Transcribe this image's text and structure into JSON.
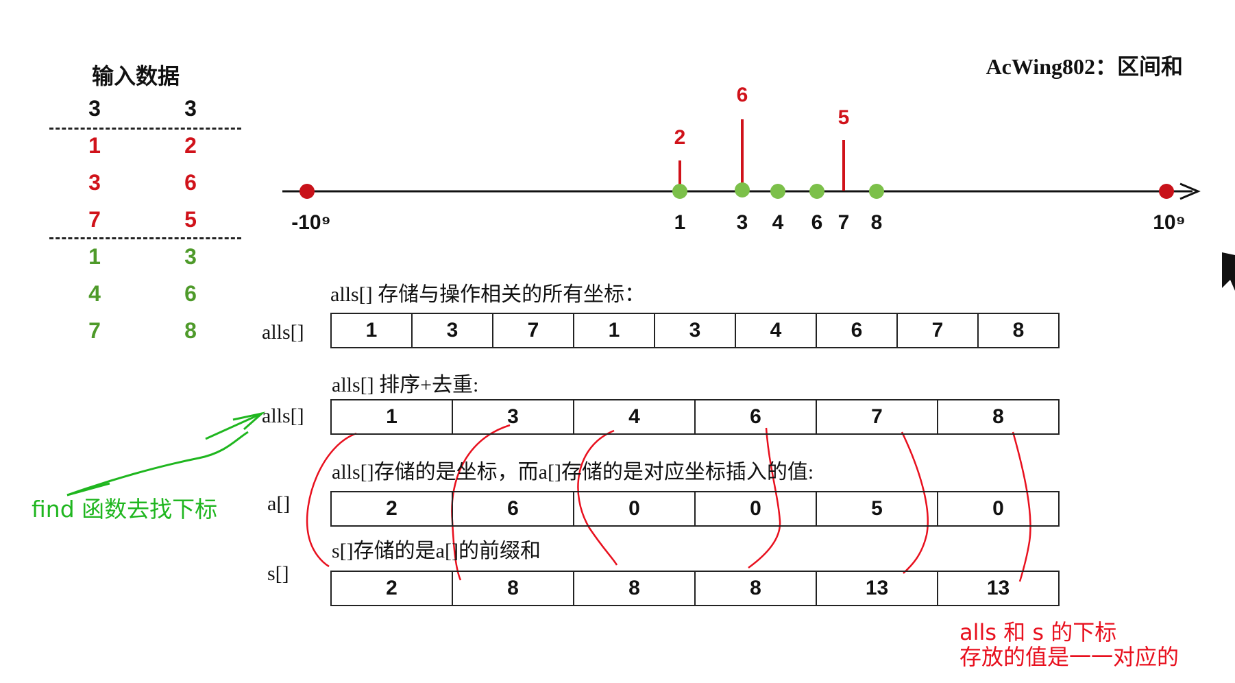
{
  "input": {
    "title": "输入数据",
    "header": [
      "3",
      "3"
    ],
    "add_rows": [
      [
        "1",
        "2"
      ],
      [
        "3",
        "6"
      ],
      [
        "7",
        "5"
      ]
    ],
    "query_rows": [
      [
        "1",
        "3"
      ],
      [
        "4",
        "6"
      ],
      [
        "7",
        "8"
      ]
    ]
  },
  "page_title": "AcWing802：区间和",
  "number_line": {
    "left_label": "-10⁹",
    "right_label": "10⁹",
    "ticks": [
      "1",
      "3",
      "4",
      "6",
      "7",
      "8"
    ],
    "bars": [
      {
        "pos": "1",
        "value": "2"
      },
      {
        "pos": "3",
        "value": "6"
      },
      {
        "pos": "7",
        "value": "5"
      }
    ]
  },
  "sections": {
    "alls_all_title": "alls[] 存储与操作相关的所有坐标：",
    "alls_all_label": "alls[]",
    "alls_all": [
      "1",
      "3",
      "7",
      "1",
      "3",
      "4",
      "6",
      "7",
      "8"
    ],
    "alls_sorted_title": "alls[] 排序+去重:",
    "alls_sorted_label": "alls[]",
    "alls_sorted": [
      "1",
      "3",
      "4",
      "6",
      "7",
      "8"
    ],
    "a_title": "alls[]存储的是坐标，而a[]存储的是对应坐标插入的值:",
    "a_label": "a[]",
    "a": [
      "2",
      "6",
      "0",
      "0",
      "5",
      "0"
    ],
    "s_title": "s[]存储的是a[]的前缀和",
    "s_label": "s[]",
    "s": [
      "2",
      "8",
      "8",
      "8",
      "13",
      "13"
    ]
  },
  "annotations": {
    "find_note": "find 函数去找下标",
    "note_line1": "alls 和 s 的下标",
    "note_line2": "存放的值是一一对应的"
  },
  "colors": {
    "red": "#d0121a",
    "green_point": "#7cc04a",
    "green_text": "#4e9a2a",
    "handwriting_green": "#1fb61f",
    "handwriting_red": "#e8101e"
  }
}
